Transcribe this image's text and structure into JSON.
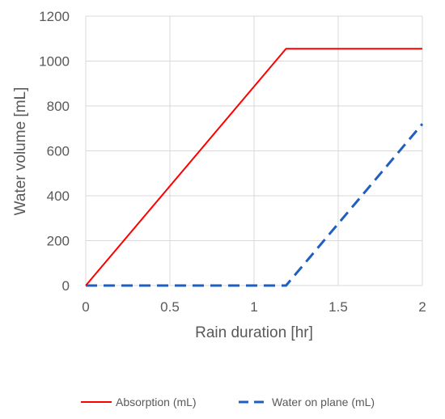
{
  "chart_data": {
    "type": "line",
    "xlabel": "Rain duration [hr]",
    "ylabel": "Water volume [mL]",
    "xlim": [
      0,
      2
    ],
    "ylim": [
      0,
      1200
    ],
    "xticks": [
      0,
      0.5,
      1,
      1.5,
      2
    ],
    "xtick_labels": [
      "0",
      "0.5",
      "1",
      "1.5",
      "2"
    ],
    "yticks": [
      0,
      200,
      400,
      600,
      800,
      1000,
      1200
    ],
    "ytick_labels": [
      "0",
      "200",
      "400",
      "600",
      "800",
      "1000",
      "1200"
    ],
    "grid": true,
    "legend_position": "bottom",
    "series": [
      {
        "name": "Absorption (mL)",
        "color": "#ff0000",
        "dash": "solid",
        "x": [
          0,
          1.19,
          2
        ],
        "y": [
          0,
          1055,
          1055
        ]
      },
      {
        "name": "Water on plane (mL)",
        "color": "#1f5fbf",
        "dash": "dashed",
        "x": [
          0,
          1.19,
          2
        ],
        "y": [
          0,
          0,
          720
        ]
      }
    ]
  }
}
